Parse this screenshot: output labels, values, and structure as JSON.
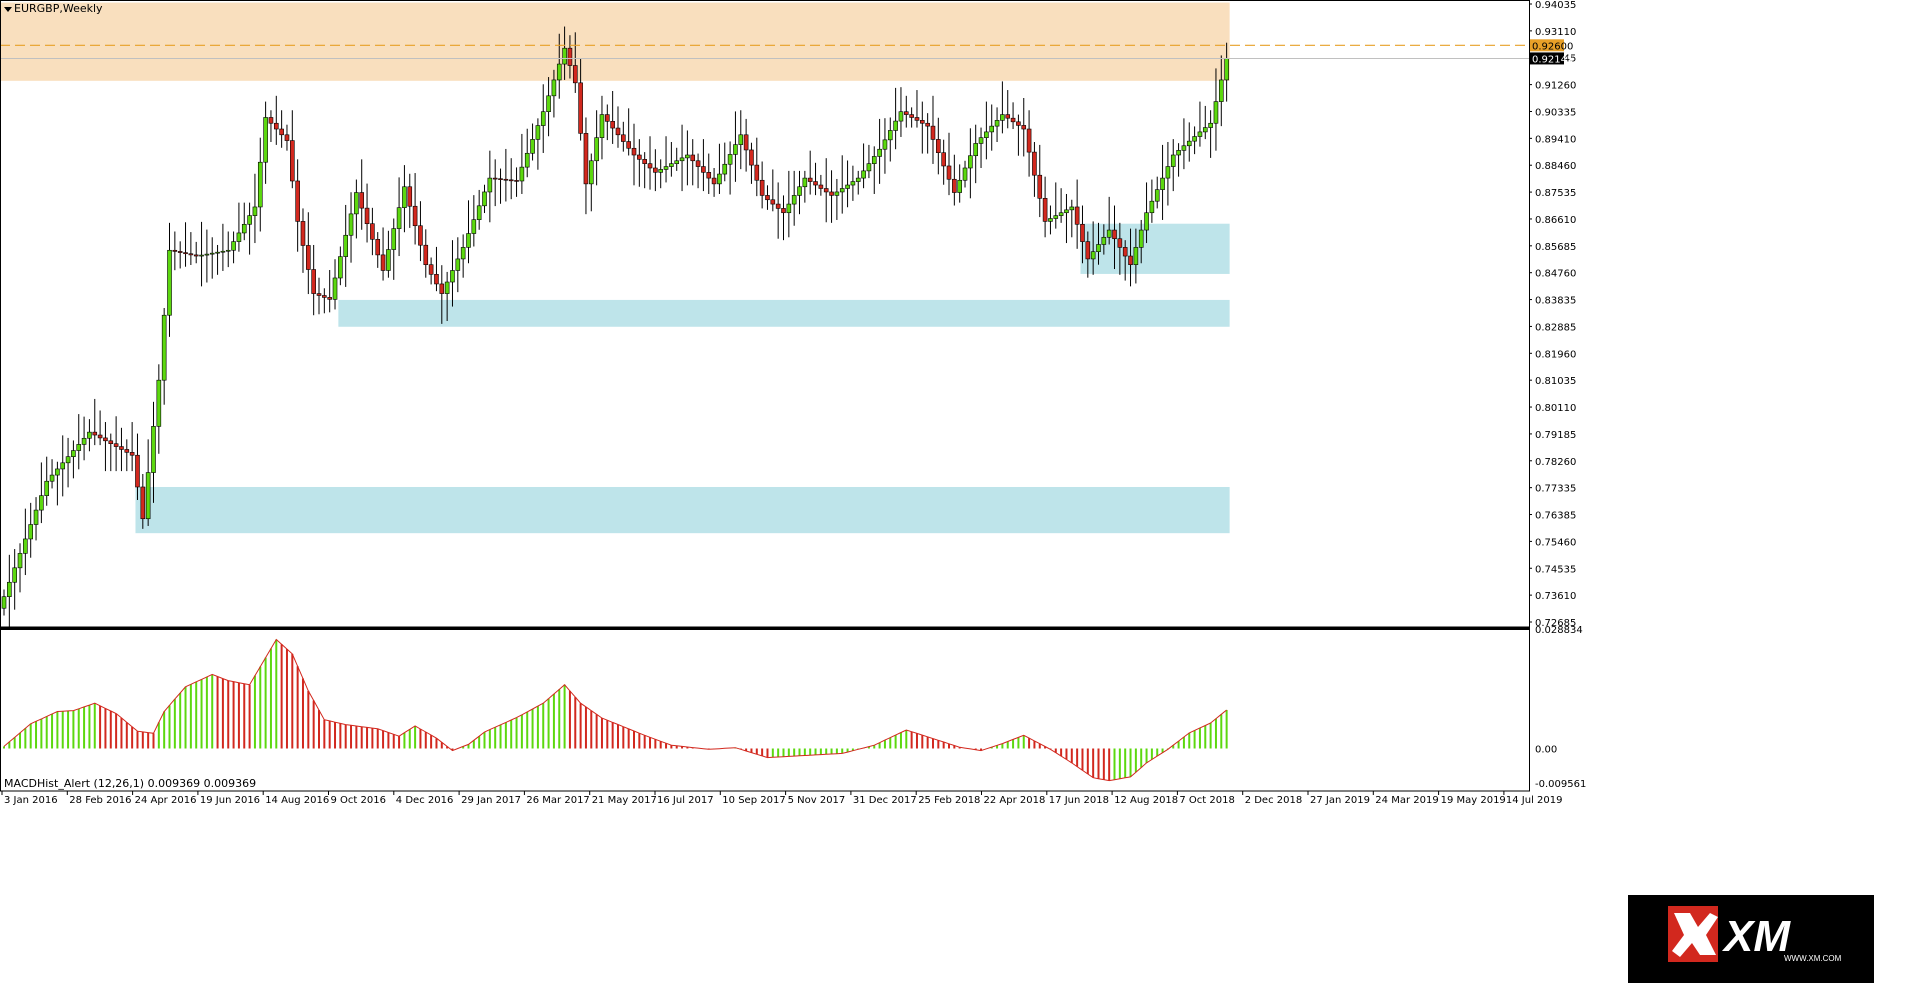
{
  "chart": {
    "symbol_title": "EURGBP,Weekly",
    "indicator_title": "MACDHist_Alert (12,26,1)",
    "indicator_values": "0.009369 0.009369",
    "logo_text": "XM",
    "logo_sub": "WWW.XM.COM",
    "colors": {
      "bull": "#5cd80f",
      "bear": "#d2281e",
      "resistance_zone": "#f9dfbe",
      "support_zone": "#bee4ea",
      "level_line": "#e8a028",
      "background": "#ffffff"
    }
  },
  "chart_data": [
    {
      "type": "candlestick",
      "title": "EURGBP,Weekly",
      "y_axis_labels": [
        "0.94035",
        "0.93110",
        "0.92145",
        "0.91260",
        "0.90335",
        "0.89410",
        "0.88460",
        "0.87535",
        "0.86610",
        "0.85685",
        "0.84760",
        "0.83835",
        "0.82885",
        "0.81960",
        "0.81035",
        "0.80110",
        "0.79185",
        "0.78260",
        "0.77335",
        "0.76385",
        "0.75460",
        "0.74535",
        "0.73610",
        "0.72685"
      ],
      "ylim": [
        0.7245,
        0.941
      ],
      "x_axis_labels": [
        "3 Jan 2016",
        "28 Feb 2016",
        "24 Apr 2016",
        "19 Jun 2016",
        "14 Aug 2016",
        "9 Oct 2016",
        "4 Dec 2016",
        "29 Jan 2017",
        "26 Mar 2017",
        "21 May 2017",
        "16 Jul 2017",
        "10 Sep 2017",
        "5 Nov 2017",
        "31 Dec 2017",
        "25 Feb 2018",
        "22 Apr 2018",
        "17 Jun 2018",
        "12 Aug 2018",
        "7 Oct 2018",
        "2 Dec 2018",
        "27 Jan 2019",
        "24 Mar 2019",
        "19 May 2019",
        "14 Jul 2019"
      ],
      "level_line": {
        "label": "0.92600",
        "value": 0.926
      },
      "current_price": {
        "label": "0.92145",
        "value": 0.92145
      },
      "zones": [
        {
          "kind": "resistance",
          "x_from_week": 0,
          "x_to_week": 229,
          "y_low": 0.9137,
          "y_high": 0.9408
        },
        {
          "kind": "support",
          "x_from_week": 63,
          "x_to_week": 229,
          "y_low": 0.8285,
          "y_high": 0.8378
        },
        {
          "kind": "support",
          "x_from_week": 25,
          "x_to_week": 229,
          "y_low": 0.757,
          "y_high": 0.773
        },
        {
          "kind": "support",
          "x_from_week": 202,
          "x_to_week": 229,
          "y_low": 0.8468,
          "y_high": 0.8642
        }
      ],
      "anchors": [
        {
          "week": 0,
          "price": 0.735
        },
        {
          "week": 8,
          "price": 0.775
        },
        {
          "week": 16,
          "price": 0.792
        },
        {
          "week": 24,
          "price": 0.784
        },
        {
          "week": 26,
          "price": 0.762
        },
        {
          "week": 29,
          "price": 0.81
        },
        {
          "week": 31,
          "price": 0.855
        },
        {
          "week": 36,
          "price": 0.853
        },
        {
          "week": 42,
          "price": 0.855
        },
        {
          "week": 47,
          "price": 0.87
        },
        {
          "week": 49,
          "price": 0.901
        },
        {
          "week": 53,
          "price": 0.893
        },
        {
          "week": 55,
          "price": 0.865
        },
        {
          "week": 58,
          "price": 0.84
        },
        {
          "week": 61,
          "price": 0.838
        },
        {
          "week": 66,
          "price": 0.875
        },
        {
          "week": 71,
          "price": 0.848
        },
        {
          "week": 75,
          "price": 0.877
        },
        {
          "week": 79,
          "price": 0.85
        },
        {
          "week": 82,
          "price": 0.84
        },
        {
          "week": 86,
          "price": 0.856
        },
        {
          "week": 91,
          "price": 0.88
        },
        {
          "week": 96,
          "price": 0.879
        },
        {
          "week": 101,
          "price": 0.903
        },
        {
          "week": 105,
          "price": 0.925
        },
        {
          "week": 107,
          "price": 0.913
        },
        {
          "week": 109,
          "price": 0.878
        },
        {
          "week": 112,
          "price": 0.902
        },
        {
          "week": 118,
          "price": 0.888
        },
        {
          "week": 122,
          "price": 0.882
        },
        {
          "week": 128,
          "price": 0.888
        },
        {
          "week": 133,
          "price": 0.878
        },
        {
          "week": 138,
          "price": 0.895
        },
        {
          "week": 142,
          "price": 0.874
        },
        {
          "week": 146,
          "price": 0.868
        },
        {
          "week": 150,
          "price": 0.88
        },
        {
          "week": 155,
          "price": 0.874
        },
        {
          "week": 160,
          "price": 0.88
        },
        {
          "week": 164,
          "price": 0.89
        },
        {
          "week": 168,
          "price": 0.903
        },
        {
          "week": 173,
          "price": 0.898
        },
        {
          "week": 178,
          "price": 0.875
        },
        {
          "week": 182,
          "price": 0.892
        },
        {
          "week": 187,
          "price": 0.902
        },
        {
          "week": 191,
          "price": 0.897
        },
        {
          "week": 195,
          "price": 0.865
        },
        {
          "week": 200,
          "price": 0.87
        },
        {
          "week": 203,
          "price": 0.852
        },
        {
          "week": 207,
          "price": 0.862
        },
        {
          "week": 211,
          "price": 0.85
        },
        {
          "week": 214,
          "price": 0.868
        },
        {
          "week": 219,
          "price": 0.888
        },
        {
          "week": 224,
          "price": 0.896
        },
        {
          "week": 226,
          "price": 0.899
        },
        {
          "week": 228,
          "price": 0.914
        },
        {
          "week": 229,
          "price": 0.9214
        }
      ]
    },
    {
      "type": "bar",
      "title": "MACDHist_Alert (12,26,1)",
      "y_axis_labels": [
        "0.028834",
        "0.00",
        "-0.009561"
      ],
      "ylim": [
        -0.0096,
        0.0288
      ],
      "last_value": 0.009369,
      "anchors": [
        {
          "week": 0,
          "value": 0.0005
        },
        {
          "week": 5,
          "value": 0.006
        },
        {
          "week": 10,
          "value": 0.009
        },
        {
          "week": 13,
          "value": 0.0092
        },
        {
          "week": 17,
          "value": 0.011
        },
        {
          "week": 21,
          "value": 0.0085
        },
        {
          "week": 25,
          "value": 0.0042
        },
        {
          "week": 28,
          "value": 0.0037
        },
        {
          "week": 30,
          "value": 0.009
        },
        {
          "week": 34,
          "value": 0.015
        },
        {
          "week": 39,
          "value": 0.018
        },
        {
          "week": 42,
          "value": 0.0165
        },
        {
          "week": 46,
          "value": 0.0155
        },
        {
          "week": 51,
          "value": 0.0265
        },
        {
          "week": 54,
          "value": 0.023
        },
        {
          "week": 57,
          "value": 0.014
        },
        {
          "week": 60,
          "value": 0.007
        },
        {
          "week": 64,
          "value": 0.0058
        },
        {
          "week": 70,
          "value": 0.0048
        },
        {
          "week": 74,
          "value": 0.003
        },
        {
          "week": 77,
          "value": 0.0055
        },
        {
          "week": 81,
          "value": 0.0025
        },
        {
          "week": 84,
          "value": -0.0005
        },
        {
          "week": 87,
          "value": 0.001
        },
        {
          "week": 90,
          "value": 0.004
        },
        {
          "week": 96,
          "value": 0.0075
        },
        {
          "week": 101,
          "value": 0.011
        },
        {
          "week": 105,
          "value": 0.0155
        },
        {
          "week": 108,
          "value": 0.011
        },
        {
          "week": 112,
          "value": 0.0074
        },
        {
          "week": 120,
          "value": 0.0032
        },
        {
          "week": 125,
          "value": 0.0008
        },
        {
          "week": 132,
          "value": -0.0002
        },
        {
          "week": 137,
          "value": 0.0002
        },
        {
          "week": 143,
          "value": -0.0022
        },
        {
          "week": 150,
          "value": -0.0017
        },
        {
          "week": 157,
          "value": -0.0012
        },
        {
          "week": 163,
          "value": 0.0008
        },
        {
          "week": 169,
          "value": 0.0045
        },
        {
          "week": 175,
          "value": 0.002
        },
        {
          "week": 179,
          "value": 0.0003
        },
        {
          "week": 183,
          "value": -0.0005
        },
        {
          "week": 187,
          "value": 0.0012
        },
        {
          "week": 191,
          "value": 0.0032
        },
        {
          "week": 196,
          "value": -0.0002
        },
        {
          "week": 200,
          "value": -0.0035
        },
        {
          "week": 204,
          "value": -0.0071
        },
        {
          "week": 207,
          "value": -0.0078
        },
        {
          "week": 211,
          "value": -0.0069
        },
        {
          "week": 214,
          "value": -0.0035
        },
        {
          "week": 218,
          "value": -0.0002
        },
        {
          "week": 222,
          "value": 0.0038
        },
        {
          "week": 226,
          "value": 0.0062
        },
        {
          "week": 229,
          "value": 0.009369
        }
      ]
    }
  ]
}
